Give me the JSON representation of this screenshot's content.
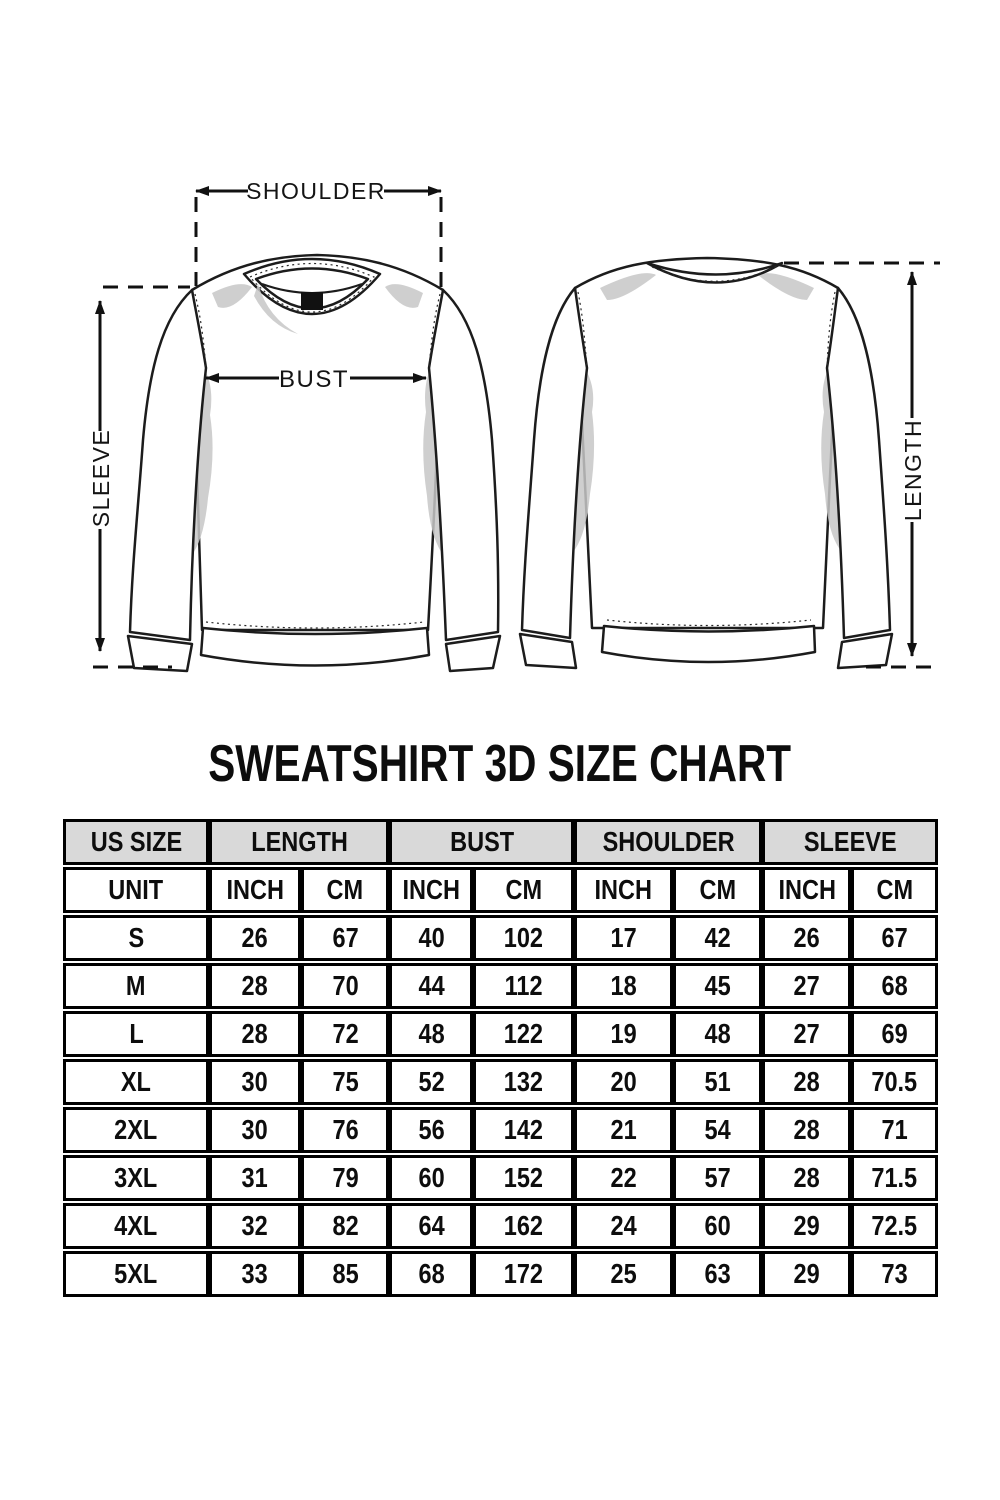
{
  "title": "SWEATSHIRT 3D SIZE CHART",
  "diagram": {
    "labels": {
      "shoulder": "SHOULDER",
      "bust": "BUST",
      "sleeve": "SLEEVE",
      "length": "LENGTH"
    }
  },
  "table": {
    "header_bg": "#d9d9d9",
    "border_color": "#000000",
    "col_groups": [
      {
        "label": "US SIZE",
        "span": 1
      },
      {
        "label": "LENGTH",
        "span": 2
      },
      {
        "label": "BUST",
        "span": 2
      },
      {
        "label": "SHOULDER",
        "span": 2
      },
      {
        "label": "SLEEVE",
        "span": 2
      }
    ],
    "unit_row": [
      "UNIT",
      "INCH",
      "CM",
      "INCH",
      "CM",
      "INCH",
      "CM",
      "INCH",
      "CM"
    ],
    "rows": [
      [
        "S",
        "26",
        "67",
        "40",
        "102",
        "17",
        "42",
        "26",
        "67"
      ],
      [
        "M",
        "28",
        "70",
        "44",
        "112",
        "18",
        "45",
        "27",
        "68"
      ],
      [
        "L",
        "28",
        "72",
        "48",
        "122",
        "19",
        "48",
        "27",
        "69"
      ],
      [
        "XL",
        "30",
        "75",
        "52",
        "132",
        "20",
        "51",
        "28",
        "70.5"
      ],
      [
        "2XL",
        "30",
        "76",
        "56",
        "142",
        "21",
        "54",
        "28",
        "71"
      ],
      [
        "3XL",
        "31",
        "79",
        "60",
        "152",
        "22",
        "57",
        "28",
        "71.5"
      ],
      [
        "4XL",
        "32",
        "82",
        "64",
        "162",
        "24",
        "60",
        "29",
        "72.5"
      ],
      [
        "5XL",
        "33",
        "85",
        "68",
        "172",
        "25",
        "63",
        "29",
        "73"
      ]
    ]
  },
  "chart_data": {
    "type": "table",
    "title": "SWEATSHIRT 3D SIZE CHART",
    "categories": [
      "S",
      "M",
      "L",
      "XL",
      "2XL",
      "3XL",
      "4XL",
      "5XL"
    ],
    "series": [
      {
        "name": "LENGTH INCH",
        "values": [
          26,
          28,
          28,
          30,
          30,
          31,
          32,
          33
        ]
      },
      {
        "name": "LENGTH CM",
        "values": [
          67,
          70,
          72,
          75,
          76,
          79,
          82,
          85
        ]
      },
      {
        "name": "BUST INCH",
        "values": [
          40,
          44,
          48,
          52,
          56,
          60,
          64,
          68
        ]
      },
      {
        "name": "BUST CM",
        "values": [
          102,
          112,
          122,
          132,
          142,
          152,
          162,
          172
        ]
      },
      {
        "name": "SHOULDER INCH",
        "values": [
          17,
          18,
          19,
          20,
          21,
          22,
          24,
          25
        ]
      },
      {
        "name": "SHOULDER CM",
        "values": [
          42,
          45,
          48,
          51,
          54,
          57,
          60,
          63
        ]
      },
      {
        "name": "SLEEVE INCH",
        "values": [
          26,
          27,
          27,
          28,
          28,
          28,
          29,
          29
        ]
      },
      {
        "name": "SLEEVE CM",
        "values": [
          67,
          68,
          69,
          70.5,
          71,
          71.5,
          72.5,
          73
        ]
      }
    ]
  }
}
